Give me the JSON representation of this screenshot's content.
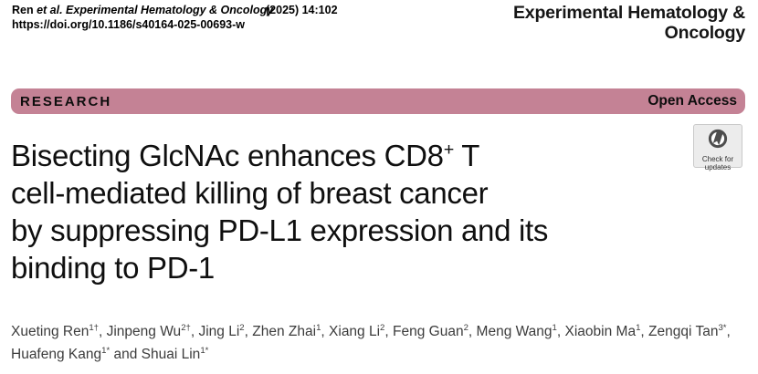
{
  "header": {
    "citation_author": "Ren",
    "citation_rest": " et al. Experimental Hematology & Oncology",
    "citation_volume": "(2025) 14:102",
    "doi": "https://doi.org/10.1186/s40164-025-00693-w",
    "journal_line1": "Experimental Hematology &",
    "journal_line2": "Oncology"
  },
  "banner": {
    "type_label": "RESEARCH",
    "access_label": "Open Access",
    "background_color": "#c48295"
  },
  "title": {
    "line1_pre": "Bisecting GlcNAc enhances CD8",
    "line1_sup": "+",
    "line1_post": " T",
    "line2": "cell-mediated killing of breast cancer",
    "line3": "by suppressing PD-L1 expression and its",
    "line4": "binding to PD-1"
  },
  "authors": {
    "list": [
      {
        "name": "Xueting Ren",
        "sup": "1†"
      },
      {
        "name": "Jinpeng Wu",
        "sup": "2†"
      },
      {
        "name": "Jing Li",
        "sup": "2"
      },
      {
        "name": "Zhen Zhai",
        "sup": "1"
      },
      {
        "name": "Xiang Li",
        "sup": "2"
      },
      {
        "name": "Feng Guan",
        "sup": "2"
      },
      {
        "name": "Meng Wang",
        "sup": "1"
      },
      {
        "name": "Xiaobin Ma",
        "sup": "1"
      },
      {
        "name": "Zengqi Tan",
        "sup": "3*"
      },
      {
        "name": "Huafeng Kang",
        "sup": "1*"
      },
      {
        "name": "Shuai Lin",
        "sup": "1*"
      }
    ],
    "separator": ", ",
    "last_separator": " and ",
    "break_after_index": 8
  },
  "check_badge": {
    "line1": "Check for",
    "line2": "updates"
  }
}
